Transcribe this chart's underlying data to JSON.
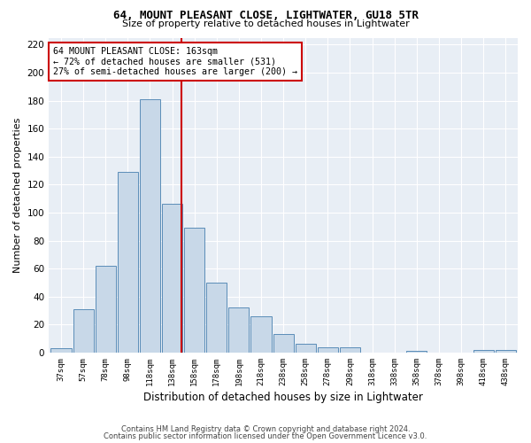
{
  "title": "64, MOUNT PLEASANT CLOSE, LIGHTWATER, GU18 5TR",
  "subtitle": "Size of property relative to detached houses in Lightwater",
  "xlabel": "Distribution of detached houses by size in Lightwater",
  "ylabel": "Number of detached properties",
  "bar_labels": [
    "37sqm",
    "57sqm",
    "78sqm",
    "98sqm",
    "118sqm",
    "138sqm",
    "158sqm",
    "178sqm",
    "198sqm",
    "218sqm",
    "238sqm",
    "258sqm",
    "278sqm",
    "298sqm",
    "318sqm",
    "338sqm",
    "358sqm",
    "378sqm",
    "398sqm",
    "418sqm",
    "438sqm"
  ],
  "bar_heights": [
    3,
    31,
    62,
    129,
    181,
    106,
    89,
    50,
    32,
    26,
    13,
    6,
    4,
    4,
    0,
    0,
    1,
    0,
    0,
    2,
    2
  ],
  "bar_color": "#c8d8e8",
  "bar_edgecolor": "#5b8db8",
  "background_color": "#e8eef5",
  "grid_color": "#ffffff",
  "vline_color": "#cc0000",
  "annotation_line1": "64 MOUNT PLEASANT CLOSE: 163sqm",
  "annotation_line2": "← 72% of detached houses are smaller (531)",
  "annotation_line3": "27% of semi-detached houses are larger (200) →",
  "annotation_box_edgecolor": "#cc0000",
  "ylim": [
    0,
    225
  ],
  "yticks": [
    0,
    20,
    40,
    60,
    80,
    100,
    120,
    140,
    160,
    180,
    200,
    220
  ],
  "vline_index": 5.42,
  "footer1": "Contains HM Land Registry data © Crown copyright and database right 2024.",
  "footer2": "Contains public sector information licensed under the Open Government Licence v3.0."
}
